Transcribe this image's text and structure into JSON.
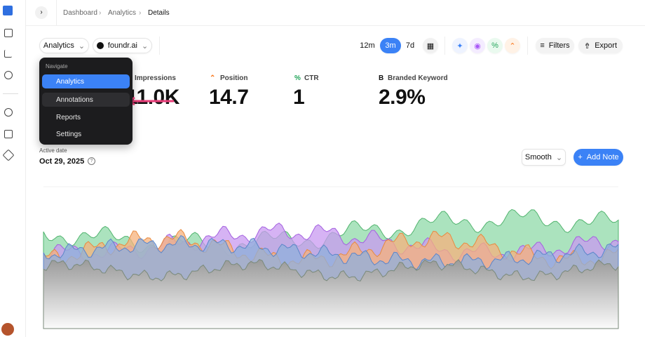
{
  "breadcrumb": [
    "Dashboard",
    "Analytics",
    "Details"
  ],
  "toolbar": {
    "workspace": "Analytics",
    "site": "foundr.ai",
    "ranges": [
      "12m",
      "3m",
      "7d"
    ],
    "filters": "Filters",
    "export": "Export"
  },
  "menu": {
    "heading": "Navigate",
    "items": [
      "Analytics",
      "Annotations",
      "Reports",
      "Settings"
    ]
  },
  "metrics": [
    {
      "label": "Impressions",
      "value": "11.0K"
    },
    {
      "label": "Position",
      "value": 14.7
    },
    {
      "label": "CTR",
      "value": 1
    },
    {
      "label": "Branded Keyword",
      "value": "2.9%"
    }
  ],
  "date": {
    "label": "Active date",
    "value": "Oct 29, 2025"
  },
  "smooth": "Smooth",
  "add_note": "Add Note"
}
